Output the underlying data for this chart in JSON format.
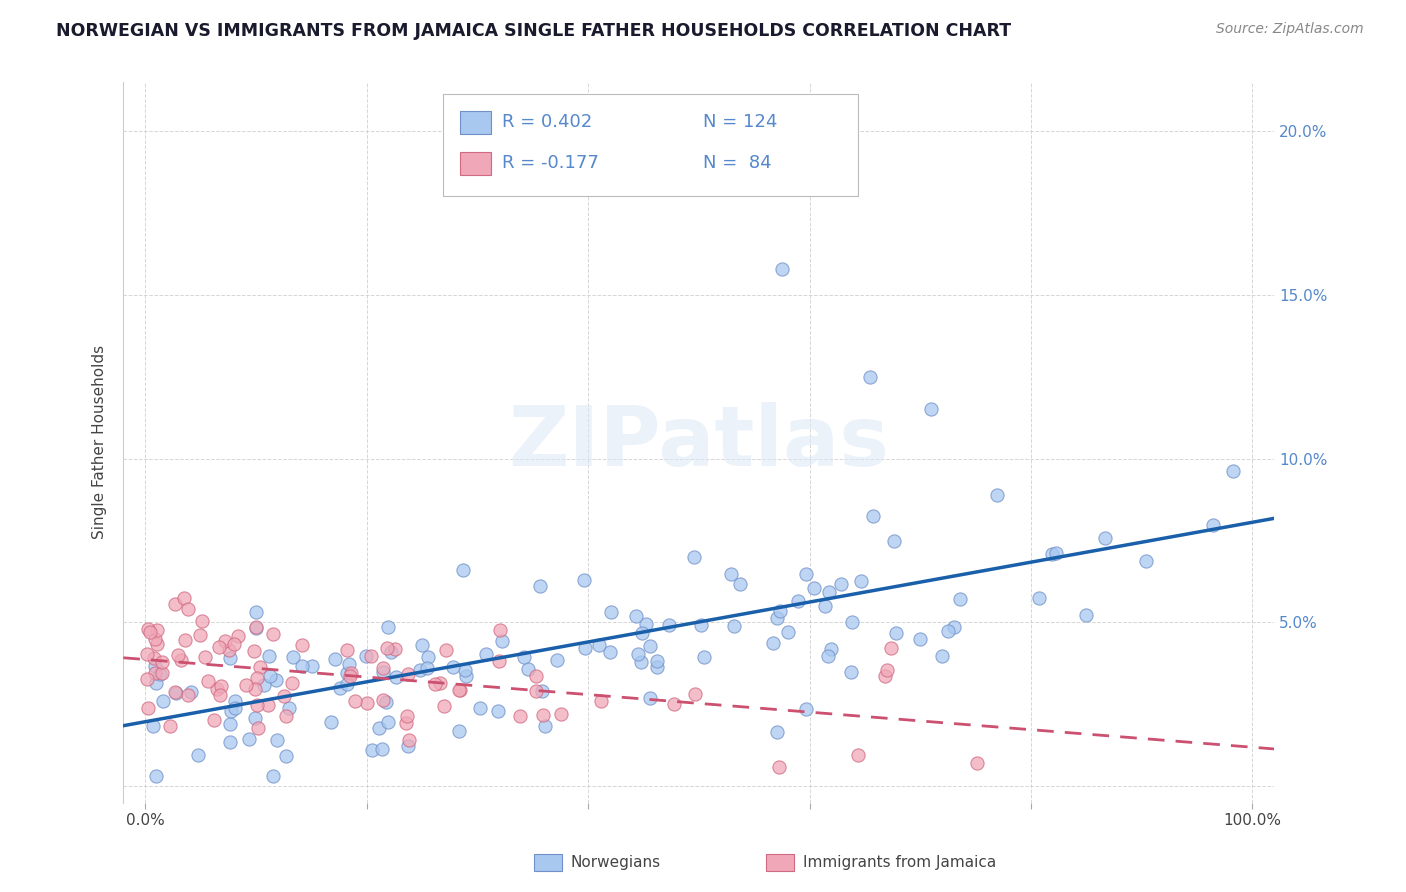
{
  "title": "NORWEGIAN VS IMMIGRANTS FROM JAMAICA SINGLE FATHER HOUSEHOLDS CORRELATION CHART",
  "source": "Source: ZipAtlas.com",
  "ylabel": "Single Father Households",
  "xlim": [
    -0.02,
    1.02
  ],
  "ylim": [
    -0.005,
    0.215
  ],
  "xticks": [
    0.0,
    0.2,
    0.4,
    0.6,
    0.8,
    1.0
  ],
  "xticklabels": [
    "0.0%",
    "",
    "",
    "",
    "",
    "100.0%"
  ],
  "yticks": [
    0.0,
    0.05,
    0.1,
    0.15,
    0.2
  ],
  "yticklabels_right": [
    "",
    "5.0%",
    "10.0%",
    "15.0%",
    "20.0%"
  ],
  "legend1_R": "R = 0.402",
  "legend1_N": "N = 124",
  "legend2_R": "R = -0.177",
  "legend2_N": "N =  84",
  "norwegian_color": "#a8c8f0",
  "norwegian_edge": "#7090c8",
  "jamaica_color": "#f0a8b8",
  "jamaica_edge": "#d06880",
  "trendline_norwegian_color": "#1a5faa",
  "trendline_jamaica_color": "#cc5070",
  "watermark": "ZIPatlas",
  "background_color": "#ffffff",
  "grid_color": "#cccccc",
  "tick_color": "#5588cc",
  "title_color": "#1a1a2e",
  "label_color": "#444444"
}
